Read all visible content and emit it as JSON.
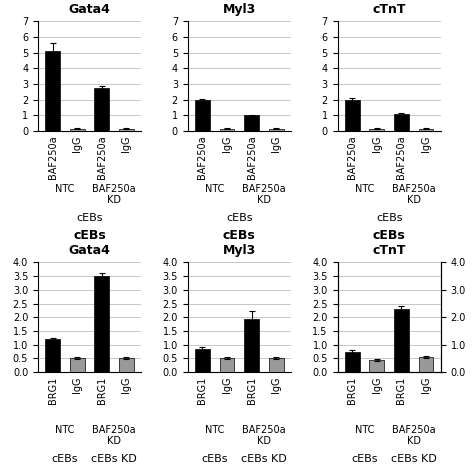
{
  "chart_data": [
    {
      "type": "bar",
      "title": "Gata4",
      "categories": [
        "BAF250a",
        "IgG",
        "BAF250a",
        "IgG"
      ],
      "series": [
        {
          "values": [
            5.1,
            0.15,
            2.75,
            0.15
          ],
          "errors": [
            0.5,
            0.04,
            0.15,
            0.04
          ],
          "colors": [
            "#000000",
            "#999999",
            "#000000",
            "#999999"
          ]
        }
      ],
      "ylim": [
        0,
        7
      ],
      "yticks": [
        0,
        1,
        2,
        3,
        4,
        5,
        6,
        7
      ],
      "grid": true,
      "annotations": [
        [
          "NTC"
        ],
        [
          "BAF250a\nKD"
        ]
      ],
      "xlabel": "cEBs"
    },
    {
      "type": "bar",
      "title": "Myl3",
      "categories": [
        "BAF250a",
        "IgG",
        "BAF250a",
        "IgG"
      ],
      "series": [
        {
          "values": [
            1.95,
            0.15,
            1.0,
            0.15
          ],
          "errors": [
            0.1,
            0.04,
            0.05,
            0.04
          ],
          "colors": [
            "#000000",
            "#999999",
            "#000000",
            "#999999"
          ]
        }
      ],
      "ylim": [
        0,
        7
      ],
      "yticks": [
        0,
        1,
        2,
        3,
        4,
        5,
        6,
        7
      ],
      "grid": true,
      "annotations": [
        [
          "NTC"
        ],
        [
          "BAF250a\nKD"
        ]
      ],
      "xlabel": "cEBs"
    },
    {
      "type": "bar",
      "title": "cTnT",
      "categories": [
        "BAF250a",
        "IgG",
        "BAF250a",
        "IgG"
      ],
      "series": [
        {
          "values": [
            2.0,
            0.15,
            1.1,
            0.15
          ],
          "errors": [
            0.1,
            0.04,
            0.05,
            0.04
          ],
          "colors": [
            "#000000",
            "#999999",
            "#000000",
            "#999999"
          ]
        }
      ],
      "ylim": [
        0,
        7
      ],
      "yticks": [
        0,
        1,
        2,
        3,
        4,
        5,
        6,
        7
      ],
      "grid": true,
      "annotations": [
        [
          "NTC"
        ],
        [
          "BAF250a\nKD"
        ]
      ],
      "xlabel": "cEBs"
    },
    {
      "type": "bar",
      "title": "cEBs\nGata4",
      "categories": [
        "BRG1",
        "IgG",
        "BRG1",
        "IgG"
      ],
      "series": [
        {
          "values": [
            1.2,
            0.5,
            3.5,
            0.5
          ],
          "errors": [
            0.05,
            0.04,
            0.12,
            0.04
          ],
          "colors": [
            "#000000",
            "#999999",
            "#000000",
            "#999999"
          ]
        }
      ],
      "ylim": [
        0,
        4
      ],
      "yticks": [
        {
          "value": 0,
          "label": "0.0"
        },
        0.5,
        {
          "value": 1,
          "label": "1.0"
        },
        1.5,
        {
          "value": 2,
          "label": "2.0"
        },
        2.5,
        {
          "value": 3,
          "label": "3.0"
        },
        3.5,
        {
          "value": 4,
          "label": "4.0"
        }
      ],
      "grid": true,
      "annotations": [
        [
          "NTC",
          "cEBs"
        ],
        [
          "BAF250a\nKD",
          "cEBs KD"
        ]
      ]
    },
    {
      "type": "bar",
      "title": "cEBs\nMyl3",
      "categories": [
        "BRG1",
        "IgG",
        "BRG1",
        "IgG"
      ],
      "series": [
        {
          "values": [
            0.85,
            0.5,
            1.95,
            0.5
          ],
          "errors": [
            0.05,
            0.04,
            0.28,
            0.04
          ],
          "colors": [
            "#000000",
            "#999999",
            "#000000",
            "#999999"
          ]
        }
      ],
      "ylim": [
        0,
        4
      ],
      "yticks": [
        {
          "value": 0,
          "label": "0.0"
        },
        0.5,
        {
          "value": 1,
          "label": "1.0"
        },
        1.5,
        {
          "value": 2,
          "label": "2.0"
        },
        2.5,
        {
          "value": 3,
          "label": "3.0"
        },
        3.5,
        {
          "value": 4,
          "label": "4.0"
        }
      ],
      "grid": true,
      "annotations": [
        [
          "NTC",
          "cEBs"
        ],
        [
          "BAF250a\nKD",
          "cEBs KD"
        ]
      ]
    },
    {
      "type": "bar",
      "title": "cEBs\ncTnT",
      "categories": [
        "BRG1",
        "IgG",
        "BRG1",
        "IgG"
      ],
      "series": [
        {
          "values": [
            0.75,
            0.45,
            2.3,
            0.55
          ],
          "errors": [
            0.05,
            0.04,
            0.1,
            0.04
          ],
          "colors": [
            "#000000",
            "#999999",
            "#000000",
            "#999999"
          ]
        }
      ],
      "ylim": [
        0,
        4
      ],
      "yticks": [
        {
          "value": 0,
          "label": "0.0"
        },
        0.5,
        {
          "value": 1,
          "label": "1.0"
        },
        1.5,
        {
          "value": 2,
          "label": "2.0"
        },
        2.5,
        {
          "value": 3,
          "label": "3.0"
        },
        3.5,
        {
          "value": 4,
          "label": "4.0"
        }
      ],
      "y2lim": [
        0,
        4
      ],
      "y2ticks": [
        {
          "value": 0,
          "label": "0.0"
        },
        {
          "value": 1,
          "label": "1.0"
        },
        {
          "value": 2,
          "label": "2.0"
        },
        {
          "value": 3,
          "label": "3.0"
        },
        {
          "value": 4,
          "label": "4.0"
        }
      ],
      "grid": true,
      "annotations": [
        [
          "NTC",
          "cEBs"
        ],
        [
          "BAF250a\nKD",
          "cEBs KD"
        ]
      ]
    }
  ]
}
